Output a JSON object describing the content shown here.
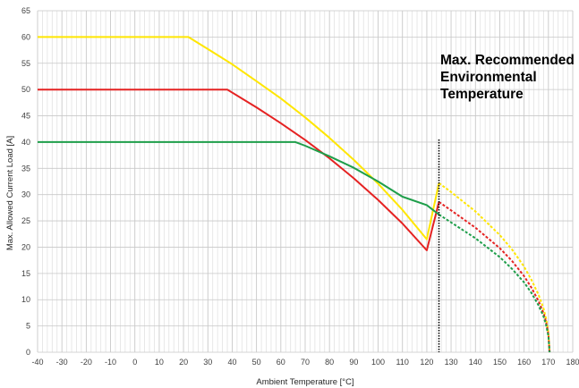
{
  "chart_data": {
    "type": "line",
    "xlabel": "Ambient Temperature [°C]",
    "ylabel": "Max. Allowed Current Load [A]",
    "xlim": [
      -40,
      180
    ],
    "ylim": [
      0,
      65
    ],
    "xticks": [
      -40,
      -30,
      -20,
      -10,
      0,
      10,
      20,
      30,
      40,
      50,
      60,
      70,
      80,
      90,
      100,
      110,
      120,
      130,
      140,
      150,
      160,
      170,
      180
    ],
    "yticks": [
      0,
      5,
      10,
      15,
      20,
      25,
      30,
      35,
      40,
      45,
      50,
      55,
      60,
      65
    ],
    "x_minor_step": 2,
    "grid": true,
    "annotation": {
      "lines": [
        "Max. Recommended",
        "Environmental",
        "Temperature"
      ],
      "x": 125,
      "color": "#000000"
    },
    "series": [
      {
        "color": "#FFE600",
        "values": [
          [
            -40,
            60
          ],
          [
            22,
            60
          ],
          [
            30,
            57.7
          ],
          [
            40,
            54.8
          ],
          [
            50,
            51.6
          ],
          [
            60,
            48.3
          ],
          [
            70,
            44.7
          ],
          [
            80,
            40.8
          ],
          [
            90,
            36.6
          ],
          [
            100,
            32.1
          ],
          [
            110,
            27.1
          ],
          [
            120,
            21.5
          ],
          [
            125,
            32.2
          ],
          [
            130,
            30.5
          ],
          [
            140,
            26.8
          ],
          [
            150,
            22.3
          ],
          [
            155,
            19.6
          ],
          [
            160,
            16.3
          ],
          [
            163,
            13.8
          ],
          [
            166,
            10.9
          ],
          [
            168,
            8.3
          ],
          [
            169,
            6.5
          ],
          [
            170,
            3.8
          ],
          [
            170.5,
            0
          ]
        ]
      },
      {
        "color": "#E52222",
        "values": [
          [
            -40,
            50
          ],
          [
            38,
            50
          ],
          [
            50,
            46.6
          ],
          [
            60,
            43.6
          ],
          [
            70,
            40.4
          ],
          [
            80,
            36.9
          ],
          [
            90,
            33.1
          ],
          [
            100,
            29.0
          ],
          [
            110,
            24.5
          ],
          [
            120,
            19.4
          ],
          [
            125,
            28.6
          ],
          [
            130,
            27.0
          ],
          [
            140,
            23.7
          ],
          [
            150,
            19.8
          ],
          [
            155,
            17.4
          ],
          [
            160,
            14.5
          ],
          [
            163,
            12.3
          ],
          [
            166,
            9.7
          ],
          [
            168,
            7.4
          ],
          [
            169,
            5.8
          ],
          [
            170,
            3.4
          ],
          [
            170.5,
            0
          ]
        ]
      },
      {
        "color": "#1E9E4A",
        "values": [
          [
            -40,
            40
          ],
          [
            66,
            40
          ],
          [
            70,
            39.3
          ],
          [
            80,
            37.3
          ],
          [
            90,
            35.1
          ],
          [
            100,
            32.5
          ],
          [
            110,
            29.6
          ],
          [
            120,
            28.0
          ],
          [
            125,
            26.2
          ],
          [
            130,
            24.7
          ],
          [
            140,
            21.7
          ],
          [
            150,
            18.1
          ],
          [
            155,
            15.9
          ],
          [
            160,
            13.3
          ],
          [
            163,
            11.3
          ],
          [
            166,
            8.9
          ],
          [
            168,
            6.8
          ],
          [
            169,
            5.3
          ],
          [
            170,
            3.1
          ],
          [
            170.5,
            0
          ]
        ]
      }
    ]
  }
}
